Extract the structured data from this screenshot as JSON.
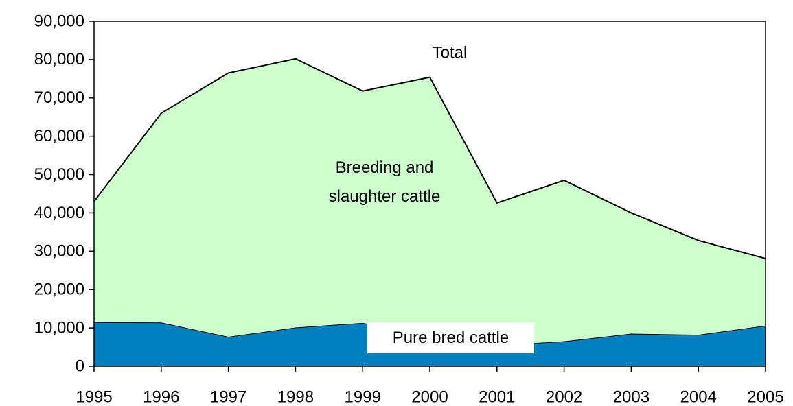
{
  "chart_data": {
    "type": "stacked_area",
    "annotation": "Total",
    "categories": [
      "1995",
      "1996",
      "1997",
      "1998",
      "1999",
      "2000",
      "2001",
      "2002",
      "2003",
      "2004",
      "2005"
    ],
    "series": [
      {
        "name": "Pure bred cattle",
        "color": "#0080c0",
        "values": [
          11500,
          11400,
          7700,
          10100,
          11300,
          8000,
          5500,
          6500,
          8500,
          8200,
          10600
        ]
      },
      {
        "name": "Breeding and slaughter cattle",
        "color": "#ccffcc",
        "values": [
          31500,
          54600,
          68800,
          70100,
          60500,
          67400,
          37100,
          42000,
          31500,
          24600,
          17500
        ]
      }
    ],
    "ylim": [
      0,
      90000
    ],
    "yticks": [
      {
        "value": 0,
        "label": "0"
      },
      {
        "value": 10000,
        "label": "10,000"
      },
      {
        "value": 20000,
        "label": "20,000"
      },
      {
        "value": 30000,
        "label": "30,000"
      },
      {
        "value": 40000,
        "label": "40,000"
      },
      {
        "value": 50000,
        "label": "50,000"
      },
      {
        "value": 60000,
        "label": "60,000"
      },
      {
        "value": 70000,
        "label": "70,000"
      },
      {
        "value": 80000,
        "label": "80,000"
      },
      {
        "value": 90000,
        "label": "90,000"
      }
    ]
  }
}
